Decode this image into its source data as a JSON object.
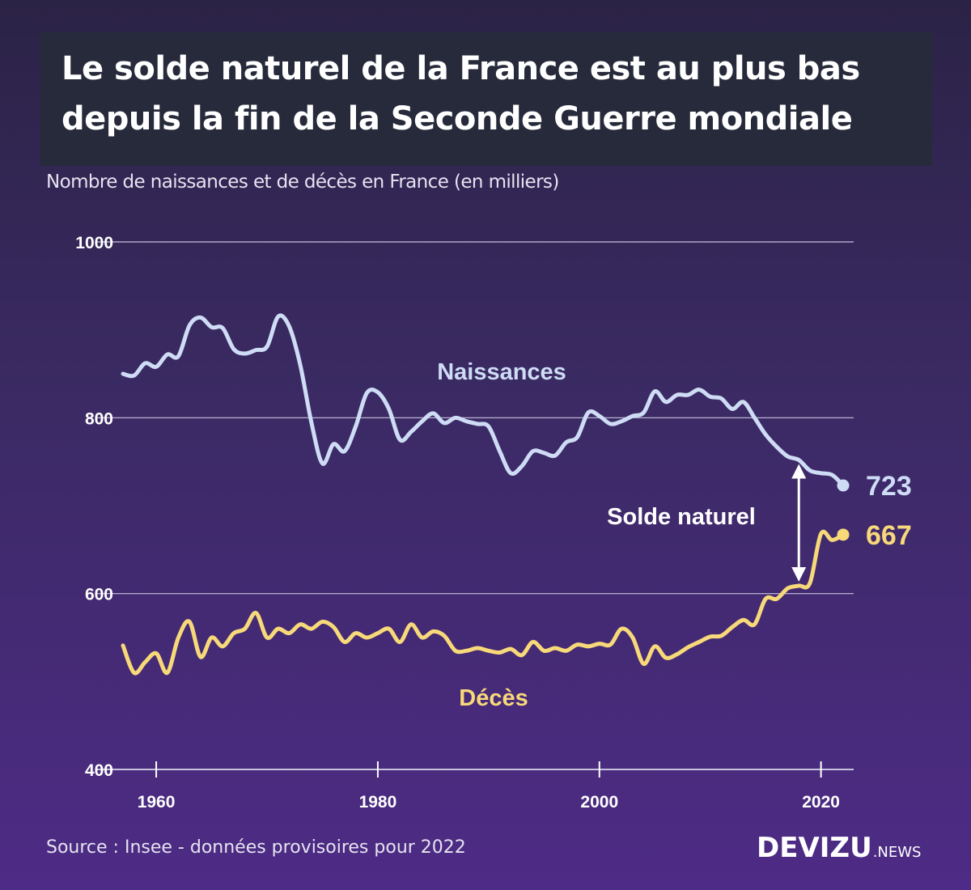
{
  "title": {
    "line1": "Le solde naturel de la France est au plus bas",
    "line2": "depuis la fin de la Seconde Guerre mondiale"
  },
  "subtitle": "Nombre de naissances et de décès en France (en milliers)",
  "source": "Source : Insee - données provisoires pour 2022",
  "logo": {
    "main": "DEVIZU",
    "suffix": ".NEWS"
  },
  "colors": {
    "births": "#cfdcf5",
    "deaths": "#f8d979",
    "grid": "#c8c2dc",
    "text": "#ffffff"
  },
  "chart_data": {
    "type": "line",
    "title": "Le solde naturel de la France est au plus bas depuis la fin de la Seconde Guerre mondiale",
    "ylabel": "Nombre de naissances et de décès en France (en milliers)",
    "xlabel": "",
    "ylim": [
      400,
      1000
    ],
    "xlim": [
      1957,
      2023
    ],
    "y_ticks": [
      400,
      600,
      800,
      1000
    ],
    "x_ticks": [
      1960,
      1980,
      2000,
      2020
    ],
    "annotation": "Solde naturel",
    "x": [
      1957,
      1958,
      1959,
      1960,
      1961,
      1962,
      1963,
      1964,
      1965,
      1966,
      1967,
      1968,
      1969,
      1970,
      1971,
      1972,
      1973,
      1974,
      1975,
      1976,
      1977,
      1978,
      1979,
      1980,
      1981,
      1982,
      1983,
      1984,
      1985,
      1986,
      1987,
      1988,
      1989,
      1990,
      1991,
      1992,
      1993,
      1994,
      1995,
      1996,
      1997,
      1998,
      1999,
      2000,
      2001,
      2002,
      2003,
      2004,
      2005,
      2006,
      2007,
      2008,
      2009,
      2010,
      2011,
      2012,
      2013,
      2014,
      2015,
      2016,
      2017,
      2018,
      2019,
      2020,
      2021,
      2022
    ],
    "series": [
      {
        "name": "Naissances",
        "end_label": "723",
        "values": [
          850,
          848,
          862,
          858,
          872,
          870,
          905,
          914,
          903,
          902,
          878,
          873,
          877,
          881,
          915,
          904,
          860,
          795,
          748,
          770,
          762,
          790,
          828,
          829,
          810,
          775,
          784,
          796,
          805,
          794,
          800,
          796,
          793,
          790,
          762,
          737,
          745,
          762,
          760,
          757,
          772,
          778,
          806,
          802,
          793,
          796,
          802,
          806,
          830,
          818,
          826,
          826,
          832,
          824,
          822,
          810,
          818,
          800,
          781,
          767,
          756,
          752,
          740,
          737,
          735,
          723
        ]
      },
      {
        "name": "Décès",
        "end_label": "667",
        "values": [
          541,
          510,
          522,
          532,
          510,
          550,
          568,
          528,
          550,
          540,
          555,
          560,
          578,
          550,
          560,
          555,
          565,
          560,
          568,
          562,
          545,
          555,
          550,
          555,
          560,
          545,
          565,
          550,
          557,
          552,
          535,
          535,
          538,
          535,
          533,
          537,
          530,
          545,
          535,
          538,
          535,
          542,
          540,
          543,
          542,
          560,
          550,
          520,
          540,
          527,
          531,
          539,
          545,
          551,
          552,
          562,
          570,
          565,
          594,
          594,
          606,
          609,
          612,
          668,
          661,
          667
        ]
      }
    ]
  }
}
